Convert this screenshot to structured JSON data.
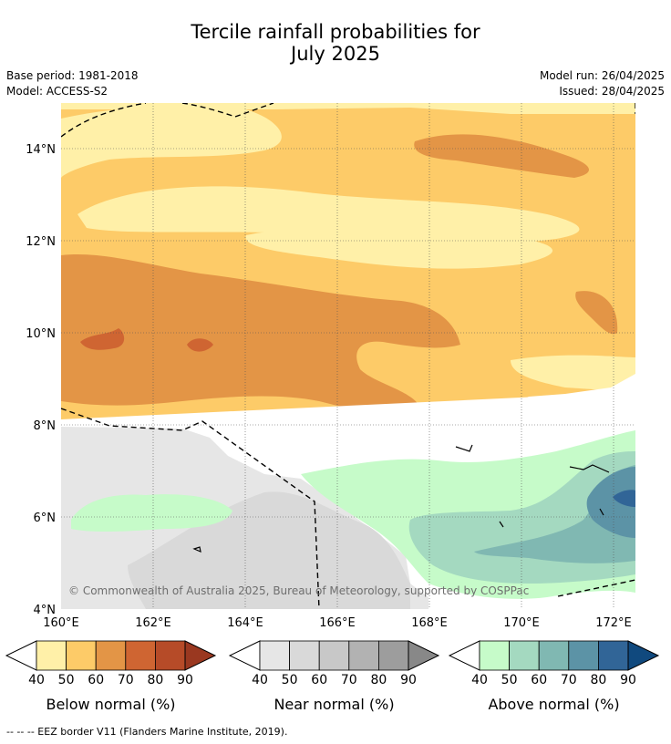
{
  "title_line1": "Tercile rainfall probabilities for",
  "title_line2": "July 2025",
  "meta": {
    "base_period": "Base period: 1981-2018",
    "model": "Model: ACCESS-S2",
    "model_run": "Model run: 26/04/2025",
    "issued": "Issued: 28/04/2025"
  },
  "map": {
    "lat_labels": [
      "14°N",
      "12°N",
      "10°N",
      "8°N",
      "6°N",
      "4°N"
    ],
    "lon_labels": [
      "160°E",
      "162°E",
      "164°E",
      "166°E",
      "168°E",
      "170°E",
      "172°E"
    ],
    "copyright": "© Commonwealth of Australia 2025, Bureau of Meteorology, supported by COSPPac"
  },
  "colorbars": [
    {
      "label": "Below normal (%)",
      "ticks": [
        "40",
        "50",
        "60",
        "70",
        "80",
        "90"
      ],
      "colors": [
        "#fff0a8",
        "#fdcb68",
        "#e39546",
        "#cf6532",
        "#b64b28",
        "#9a3820"
      ]
    },
    {
      "label": "Near normal (%)",
      "ticks": [
        "40",
        "50",
        "60",
        "70",
        "80",
        "90"
      ],
      "colors": [
        "#e6e6e6",
        "#d9d9d9",
        "#c8c8c8",
        "#b2b2b2",
        "#9d9d9d",
        "#888888"
      ]
    },
    {
      "label": "Above normal (%)",
      "ticks": [
        "40",
        "50",
        "60",
        "70",
        "80",
        "90"
      ],
      "colors": [
        "#c6fbc9",
        "#a4d9c0",
        "#80b8b2",
        "#5c93a6",
        "#316597",
        "#10497e"
      ]
    }
  ],
  "footer": "--  --  -- EEZ border V11 (Flanders Marine Institute, 2019)."
}
